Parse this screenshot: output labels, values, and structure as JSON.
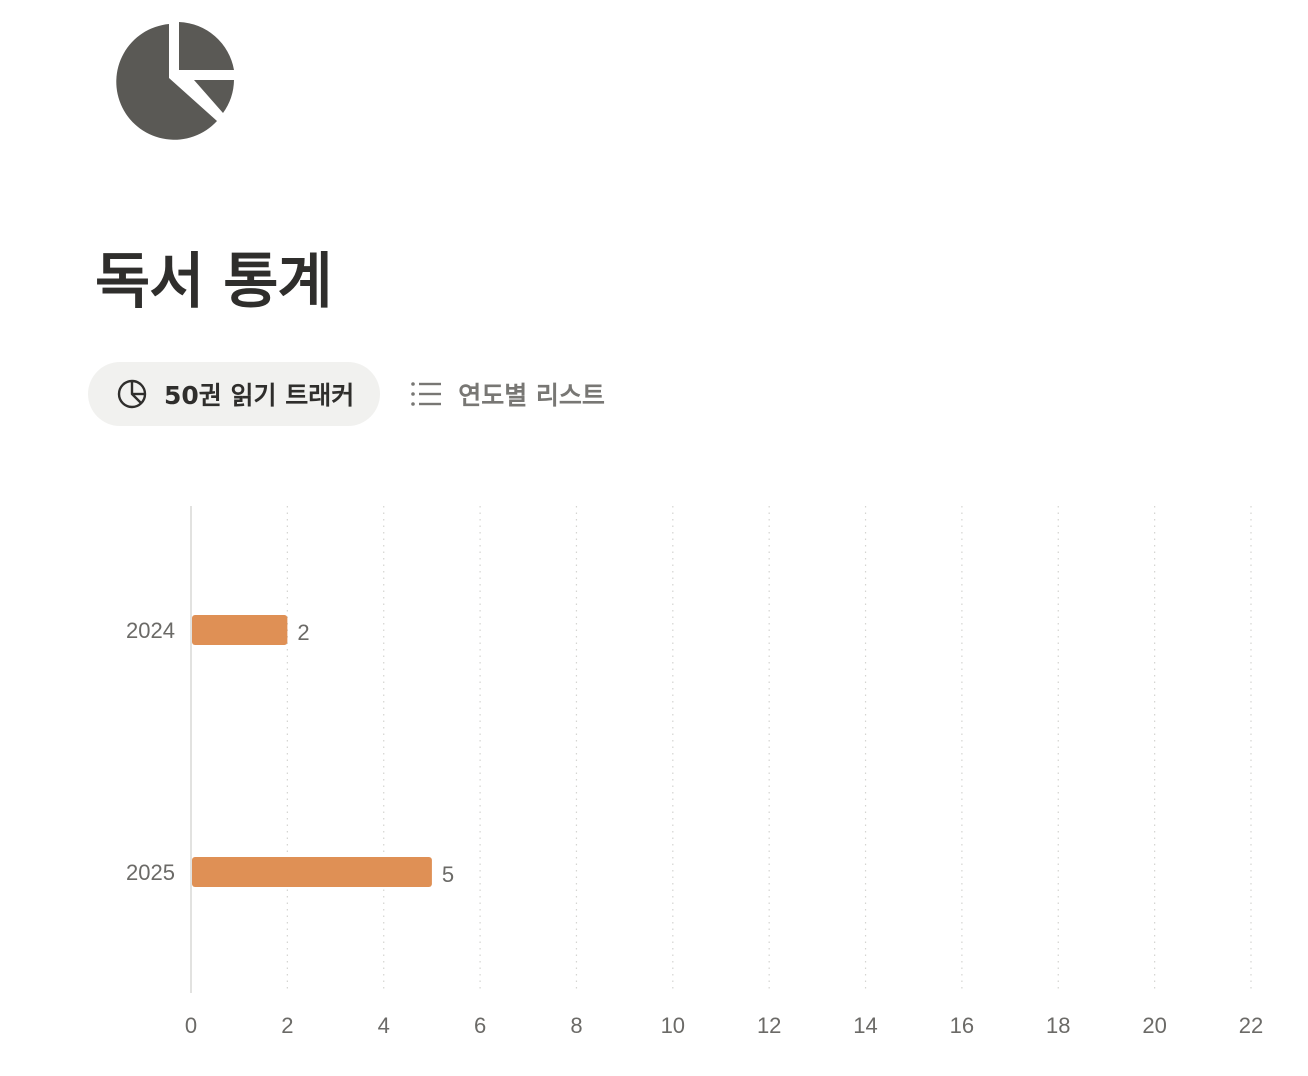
{
  "page": {
    "title": "독서 통계",
    "icon": "pie-chart-icon"
  },
  "tabs": [
    {
      "label": "50권 읽기 트래커",
      "icon": "pie-chart-outline-icon",
      "active": true
    },
    {
      "label": "연도별 리스트",
      "icon": "list-icon",
      "active": false
    }
  ],
  "colors": {
    "bar": "#df9055",
    "icon": "#5a5955",
    "active_tab_bg": "#f1f1ef"
  },
  "chart_data": {
    "type": "bar",
    "orientation": "horizontal",
    "categories": [
      "2024",
      "2025"
    ],
    "values": [
      2,
      5
    ],
    "xlim": [
      0,
      22
    ],
    "xticks": [
      0,
      2,
      4,
      6,
      8,
      10,
      12,
      14,
      16,
      18,
      20,
      22
    ],
    "grid": true,
    "data_labels": true,
    "title": "",
    "xlabel": "",
    "ylabel": ""
  }
}
